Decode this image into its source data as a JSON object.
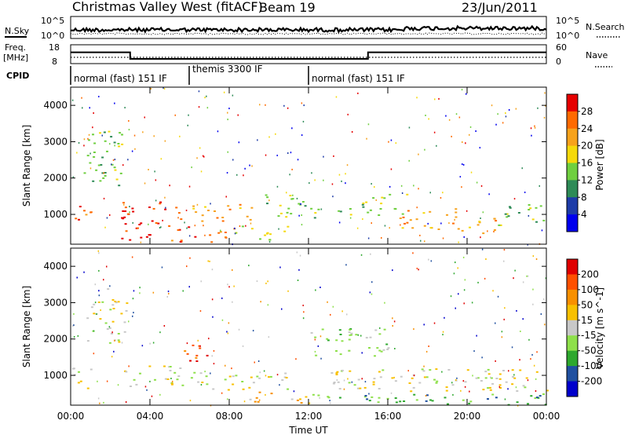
{
  "header": {
    "station": "Christmas Valley West (fitACF)",
    "beam": "Beam 19",
    "date": "23/Jun/2011"
  },
  "colors": {
    "power_scale": [
      "#0000ee",
      "#1e3ca8",
      "#2e8b57",
      "#6fcf3f",
      "#f5d90a",
      "#f7a21b",
      "#ff6a00",
      "#e60000"
    ],
    "velocity_scale": [
      "#0000cc",
      "#2050a0",
      "#2ea82e",
      "#8ee04a",
      "#c8c8c8",
      "#f8c000",
      "#f89000",
      "#ff5000",
      "#e00000"
    ],
    "ground_scatter": "#c0c0c0"
  },
  "noise_panel": {
    "left_label": "N.Sky",
    "right_label": "N.Search",
    "left_ticks": [
      "10^5",
      "10^0"
    ],
    "right_ticks": [
      "10^5",
      "10^0"
    ]
  },
  "freq_panel": {
    "left_label_1": "Freq.",
    "left_label_2": "[MHz]",
    "left_ticks": [
      "18",
      "8"
    ],
    "right_label": "Nave",
    "right_ticks": [
      "60",
      "0"
    ]
  },
  "cpid": {
    "label": "CPID",
    "segments": [
      {
        "name": "normal (fast) 151 IF",
        "start": 0,
        "end": 6
      },
      {
        "name": "themis 3300 IF",
        "start": 6,
        "end": 12
      },
      {
        "name": "normal (fast) 151 IF",
        "start": 12,
        "end": 24
      }
    ]
  },
  "chart_data": [
    {
      "type": "line",
      "title": "Christmas Valley West (fitACF) Beam 19 23/Jun/2011",
      "ylabel": "Freq. [MHz]",
      "y2label": "Nave",
      "ylim": [
        8,
        18
      ],
      "y2lim": [
        0,
        60
      ],
      "x": [
        0,
        3,
        3,
        12,
        12,
        15,
        15,
        24
      ],
      "series": [
        {
          "name": "Freq.",
          "values": [
            14,
            14,
            10.5,
            10.5,
            10.5,
            10.5,
            14,
            14
          ]
        }
      ]
    },
    {
      "type": "heatmap",
      "xlabel": "Time UT",
      "ylabel": "Slant Range [km]",
      "colorbar_label": "Power [dB]",
      "xlim": [
        0,
        24
      ],
      "ylim": [
        180,
        4500
      ],
      "x_ticks": [
        "00:00",
        "04:00",
        "08:00",
        "12:00",
        "16:00",
        "20:00",
        "00:00"
      ],
      "y_ticks": [
        "1000",
        "2000",
        "3000",
        "4000"
      ],
      "colorbar_ticks": [
        "4",
        "8",
        "12",
        "16",
        "20",
        "24",
        "28"
      ],
      "colorbar_range": [
        0,
        32
      ],
      "regions": [
        {
          "t": [
            0,
            1
          ],
          "r": [
            700,
            1300
          ],
          "level": 6
        },
        {
          "t": [
            0.6,
            2.6
          ],
          "r": [
            1800,
            3400
          ],
          "level": 3
        },
        {
          "t": [
            2.5,
            5.8
          ],
          "r": [
            700,
            1400
          ],
          "level": 7
        },
        {
          "t": [
            2,
            4
          ],
          "r": [
            300,
            700
          ],
          "level": 7
        },
        {
          "t": [
            5,
            8
          ],
          "r": [
            250,
            700
          ],
          "level": 6
        },
        {
          "t": [
            6,
            9.2
          ],
          "r": [
            800,
            1300
          ],
          "level": 5
        },
        {
          "t": [
            8,
            11
          ],
          "r": [
            300,
            700
          ],
          "level": 4
        },
        {
          "t": [
            9.8,
            12
          ],
          "r": [
            900,
            1600
          ],
          "level": 3
        },
        {
          "t": [
            12,
            14.5
          ],
          "r": [
            900,
            1200
          ],
          "level": 3
        },
        {
          "t": [
            14.5,
            17
          ],
          "r": [
            1000,
            1600
          ],
          "level": 3
        },
        {
          "t": [
            16.5,
            19.5
          ],
          "r": [
            600,
            1200
          ],
          "level": 5
        },
        {
          "t": [
            19.5,
            21.5
          ],
          "r": [
            500,
            1000
          ],
          "level": 5
        },
        {
          "t": [
            21.5,
            24
          ],
          "r": [
            700,
            1300
          ],
          "level": 3
        }
      ]
    },
    {
      "type": "heatmap",
      "xlabel": "Time UT",
      "ylabel": "Slant Range [km]",
      "colorbar_label": "Velocity [m s^-1]",
      "xlim": [
        0,
        24
      ],
      "ylim": [
        180,
        4500
      ],
      "x_ticks": [
        "00:00",
        "04:00",
        "08:00",
        "12:00",
        "16:00",
        "20:00",
        "00:00"
      ],
      "y_ticks": [
        "1000",
        "2000",
        "3000",
        "4000"
      ],
      "colorbar_ticks": [
        "200",
        "100",
        "50",
        "15",
        "-15",
        "-50",
        "-100",
        "-200"
      ],
      "colorbar_range": [
        -250,
        250
      ],
      "regions": [
        {
          "t": [
            0,
            1
          ],
          "r": [
            600,
            1300
          ],
          "level": 4
        },
        {
          "t": [
            0.8,
            2.8
          ],
          "r": [
            1900,
            3400
          ],
          "level": 4
        },
        {
          "t": [
            2.5,
            5.6
          ],
          "r": [
            700,
            1300
          ],
          "level": 4
        },
        {
          "t": [
            5.5,
            7
          ],
          "r": [
            1300,
            1900
          ],
          "level": 7
        },
        {
          "t": [
            6,
            11
          ],
          "r": [
            600,
            1100
          ],
          "level": 4
        },
        {
          "t": [
            9,
            12
          ],
          "r": [
            250,
            600
          ],
          "level": 5
        },
        {
          "t": [
            12,
            16
          ],
          "r": [
            1500,
            2300
          ],
          "level": 3
        },
        {
          "t": [
            13,
            17
          ],
          "r": [
            600,
            1200
          ],
          "level": 4
        },
        {
          "t": [
            12,
            24
          ],
          "r": [
            200,
            500
          ],
          "level": 2
        },
        {
          "t": [
            17,
            24
          ],
          "r": [
            500,
            1200
          ],
          "level": 4
        }
      ]
    }
  ]
}
